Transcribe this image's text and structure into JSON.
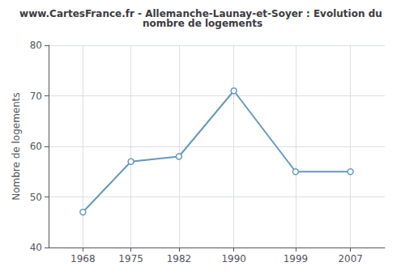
{
  "chart_data": {
    "type": "line",
    "title": "www.CartesFrance.fr - Allemanche-Launay-et-Soyer : Evolution du nombre de logements",
    "ylabel": "Nombre de logements",
    "x": [
      1968,
      1975,
      1982,
      1990,
      1999,
      2007
    ],
    "values": [
      47,
      57,
      58,
      71,
      55,
      55
    ],
    "color": "#6699bb",
    "marker": "circle",
    "xlim": [
      1963,
      2012
    ],
    "xticks": [
      1968,
      1975,
      1982,
      1990,
      1999,
      2007
    ],
    "ylim": [
      40,
      80
    ],
    "yticks": [
      40,
      50,
      60,
      70,
      80
    ],
    "grid": true
  }
}
